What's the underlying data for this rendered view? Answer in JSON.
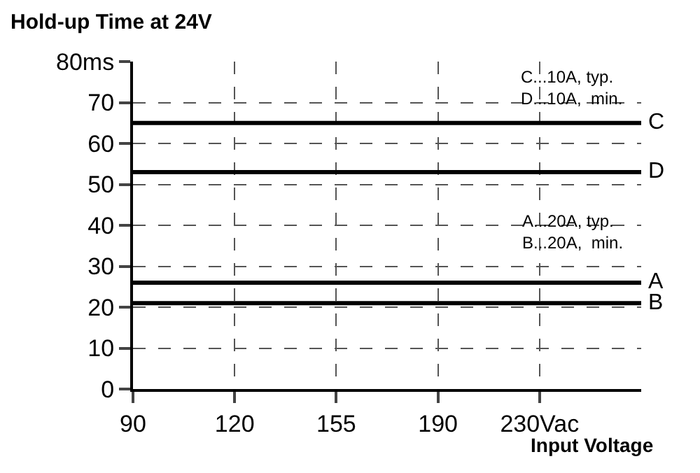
{
  "chart_data": {
    "type": "line",
    "title": "Hold-up Time at 24V",
    "xlabel": "Input Voltage",
    "categories": [
      "90",
      "120",
      "155",
      "190",
      "230Vac",
      null
    ],
    "series": [
      {
        "name": "C",
        "color": "#000000",
        "values": [
          65,
          65,
          65,
          65,
          65,
          65
        ]
      },
      {
        "name": "D",
        "color": "#000000",
        "values": [
          53,
          53,
          53,
          53,
          53,
          53
        ]
      },
      {
        "name": "A",
        "color": "#000000",
        "values": [
          26,
          26,
          26,
          26,
          26,
          26
        ]
      },
      {
        "name": "B",
        "color": "#000000",
        "values": [
          21,
          21,
          21,
          21,
          21,
          21
        ]
      }
    ],
    "ylim": [
      0,
      80
    ],
    "yticks": [
      0,
      10,
      20,
      30,
      40,
      50,
      60,
      70,
      {
        "value": 80,
        "label": "80ms"
      }
    ],
    "annotations": [
      "C...10A, typ.\nD...10A,  min.",
      "A...20A, typ.\nB...20A,  min."
    ],
    "grid": true,
    "legend": false,
    "marker": "none",
    "line_style": "solid"
  }
}
